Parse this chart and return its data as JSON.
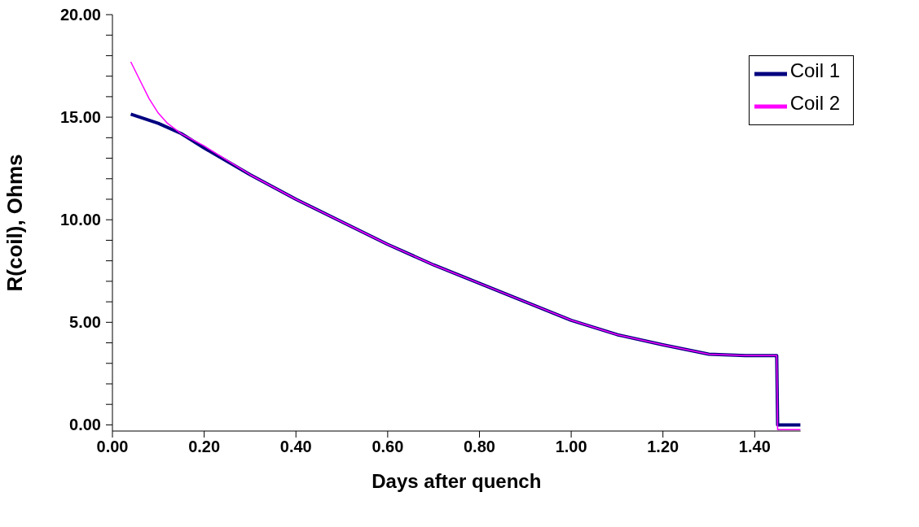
{
  "chart_data": {
    "type": "line",
    "xlabel": "Days after quench",
    "ylabel": "R(coil), Ohms",
    "xlim": [
      0,
      1.5
    ],
    "ylim": [
      -0.3,
      20
    ],
    "xticks": [
      {
        "value": 0,
        "label": "0.00"
      },
      {
        "value": 0.2,
        "label": "0.20"
      },
      {
        "value": 0.4,
        "label": "0.40"
      },
      {
        "value": 0.6,
        "label": "0.60"
      },
      {
        "value": 0.8,
        "label": "0.80"
      },
      {
        "value": 1,
        "label": "1.00"
      },
      {
        "value": 1.2,
        "label": "1.20"
      },
      {
        "value": 1.4,
        "label": "1.40"
      }
    ],
    "yticks": [
      {
        "value": 0,
        "label": "0.00"
      },
      {
        "value": 1,
        "label": null
      },
      {
        "value": 2,
        "label": null
      },
      {
        "value": 3,
        "label": null
      },
      {
        "value": 4,
        "label": null
      },
      {
        "value": 5,
        "label": "5.00"
      },
      {
        "value": 6,
        "label": null
      },
      {
        "value": 7,
        "label": null
      },
      {
        "value": 8,
        "label": null
      },
      {
        "value": 9,
        "label": null
      },
      {
        "value": 10,
        "label": "10.00"
      },
      {
        "value": 11,
        "label": null
      },
      {
        "value": 12,
        "label": null
      },
      {
        "value": 13,
        "label": null
      },
      {
        "value": 14,
        "label": null
      },
      {
        "value": 15,
        "label": "15.00"
      },
      {
        "value": 16,
        "label": null
      },
      {
        "value": 17,
        "label": null
      },
      {
        "value": 18,
        "label": null
      },
      {
        "value": 19,
        "label": null
      },
      {
        "value": 20,
        "label": "20.00"
      }
    ],
    "grid": false,
    "legend": "top right",
    "marker": "none",
    "line_style": "solid",
    "series": [
      {
        "name": "Coil 1",
        "color": "#000080",
        "x": [
          0.04,
          0.1,
          0.15,
          0.2,
          0.3,
          0.4,
          0.5,
          0.6,
          0.7,
          0.8,
          0.9,
          1.0,
          1.1,
          1.2,
          1.3,
          1.38,
          1.448,
          1.45,
          1.5
        ],
        "values": [
          15.15,
          14.7,
          14.2,
          13.5,
          12.2,
          11.0,
          9.9,
          8.8,
          7.8,
          6.9,
          6.0,
          5.1,
          4.4,
          3.9,
          3.45,
          3.38,
          3.38,
          0,
          0
        ]
      },
      {
        "name": "Coil 2",
        "color": "#ff00ff",
        "x": [
          0.04,
          0.06,
          0.08,
          0.1,
          0.12,
          0.15,
          0.2,
          0.3,
          0.4,
          0.5,
          0.6,
          0.7,
          0.8,
          0.9,
          1.0,
          1.1,
          1.2,
          1.3,
          1.38,
          1.448,
          1.45,
          1.5
        ],
        "values": [
          17.7,
          16.8,
          15.9,
          15.2,
          14.7,
          14.2,
          13.6,
          12.2,
          11.0,
          9.9,
          8.8,
          7.8,
          6.9,
          6.0,
          5.1,
          4.4,
          3.9,
          3.45,
          3.38,
          3.38,
          -0.23,
          -0.23
        ]
      }
    ]
  }
}
